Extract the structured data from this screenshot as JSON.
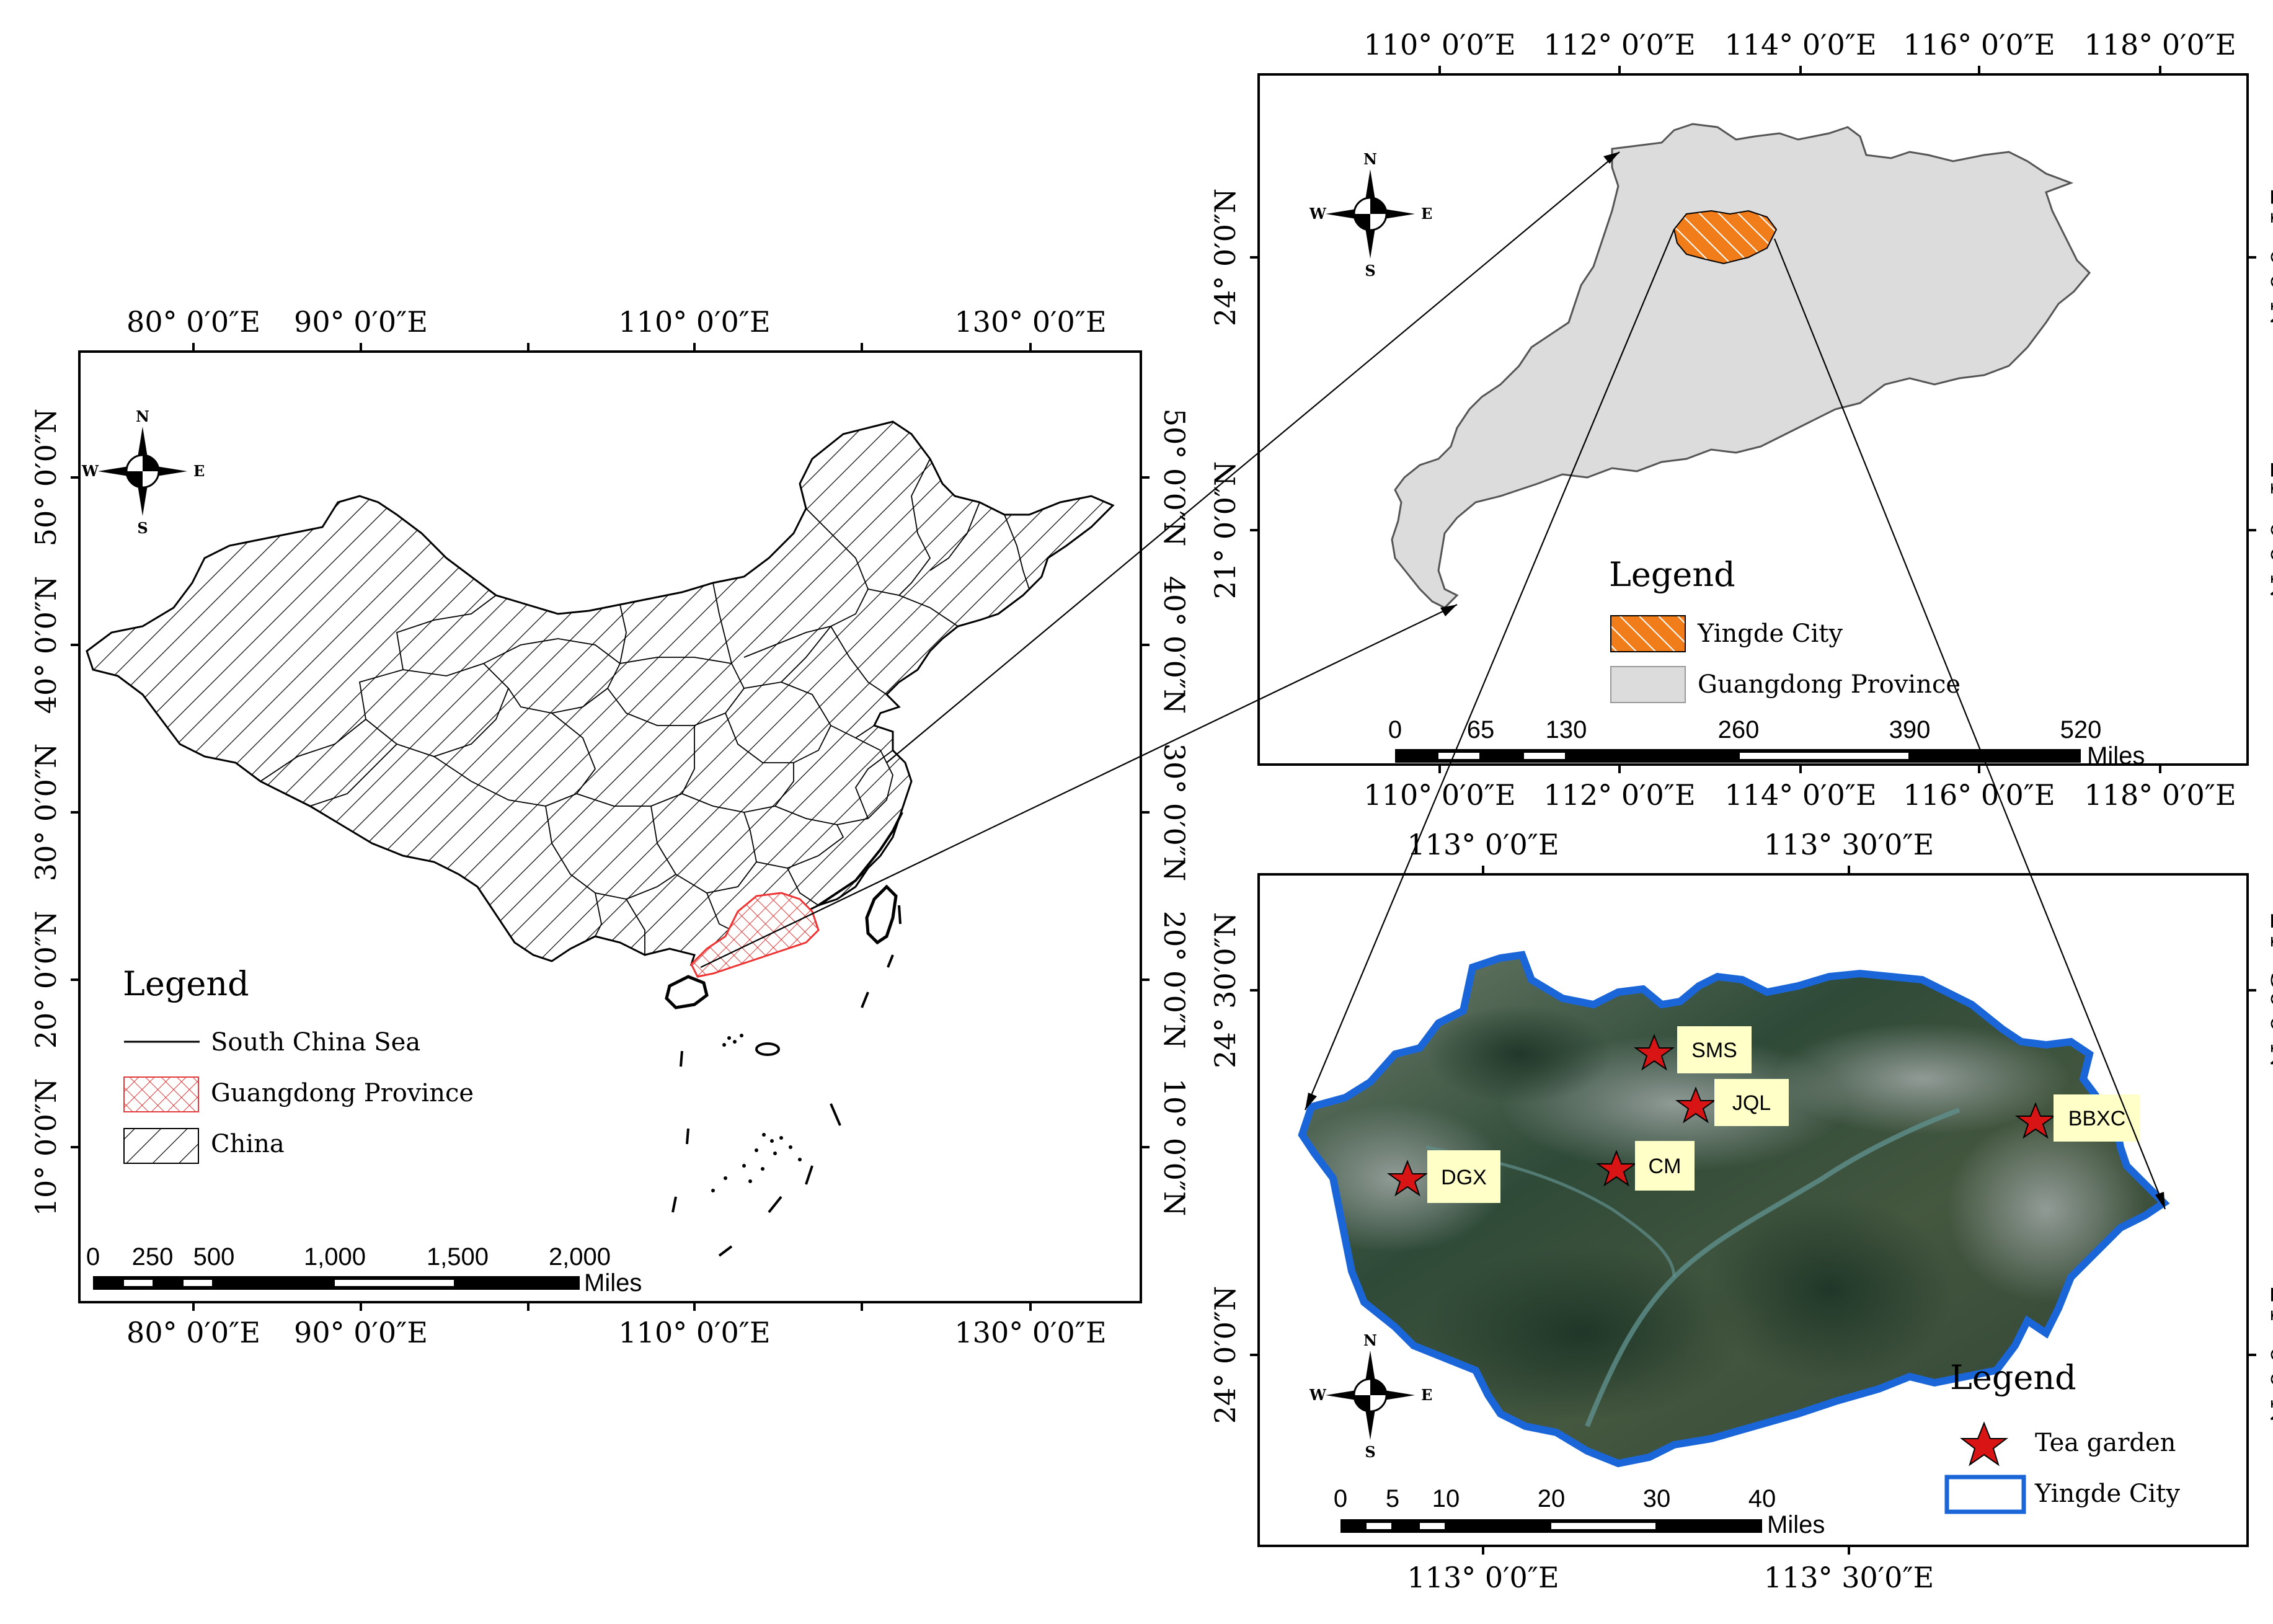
{
  "map_left": {
    "top_lon_labels": [
      "80° 0′0″E",
      "90° 0′0″E",
      "110° 0′0″E",
      "130° 0′0″E"
    ],
    "bottom_lon_labels": [
      "80° 0′0″E",
      "90° 0′0″E",
      "110° 0′0″E",
      "130° 0′0″E"
    ],
    "lat_labels": [
      "50° 0′0″N",
      "40° 0′0″N",
      "30° 0′0″N",
      "20° 0′0″N",
      "10° 0′0″N"
    ],
    "compass": {
      "n": "N",
      "s": "S",
      "e": "E",
      "w": "W"
    },
    "legend": {
      "title": "Legend",
      "items": [
        "South China Sea",
        "Guangdong Province",
        "China"
      ]
    },
    "scalebar": {
      "ticks": [
        "0",
        "250",
        "500",
        "1,000",
        "1,500",
        "2,000"
      ],
      "unit": "Miles"
    }
  },
  "map_top_right": {
    "top_lon_labels": [
      "110° 0′0″E",
      "112° 0′0″E",
      "114° 0′0″E",
      "116° 0′0″E",
      "118° 0′0″E"
    ],
    "bottom_lon_labels": [
      "110° 0′0″E",
      "112° 0′0″E",
      "114° 0′0″E",
      "116° 0′0″E",
      "118° 0′0″E"
    ],
    "lat_labels": [
      "24° 0′0″N",
      "21° 0′0″N"
    ],
    "compass": {
      "n": "N",
      "s": "S",
      "e": "E",
      "w": "W"
    },
    "legend": {
      "title": "Legend",
      "items": [
        "Yingde City",
        "Guangdong Province"
      ]
    },
    "scalebar": {
      "ticks": [
        "0",
        "65",
        "130",
        "260",
        "390",
        "520"
      ],
      "unit": "Miles"
    }
  },
  "map_bottom_right": {
    "top_lon_labels": [
      "113° 0′0″E",
      "113° 30′0″E"
    ],
    "bottom_lon_labels": [
      "113° 0′0″E",
      "113° 30′0″E"
    ],
    "lat_labels": [
      "24° 30′0″N",
      "24° 0′0″N"
    ],
    "compass": {
      "n": "N",
      "s": "S",
      "e": "E",
      "w": "W"
    },
    "sites": [
      "SMS",
      "JQL",
      "BBXC",
      "CM",
      "DGX"
    ],
    "legend": {
      "title": "Legend",
      "items": [
        "Tea garden",
        "Yingde City"
      ]
    },
    "scalebar": {
      "ticks": [
        "0",
        "5",
        "10",
        "20",
        "30",
        "40"
      ],
      "unit": "Miles"
    }
  },
  "colors": {
    "yingde_fill": "#f07d1a",
    "guangdong_fill": "#dcdcdc",
    "gd_hatch": "#e33b3b",
    "boundary_blue": "#1a66d9",
    "star_red": "#d81414",
    "label_box": "#ffffc8"
  }
}
